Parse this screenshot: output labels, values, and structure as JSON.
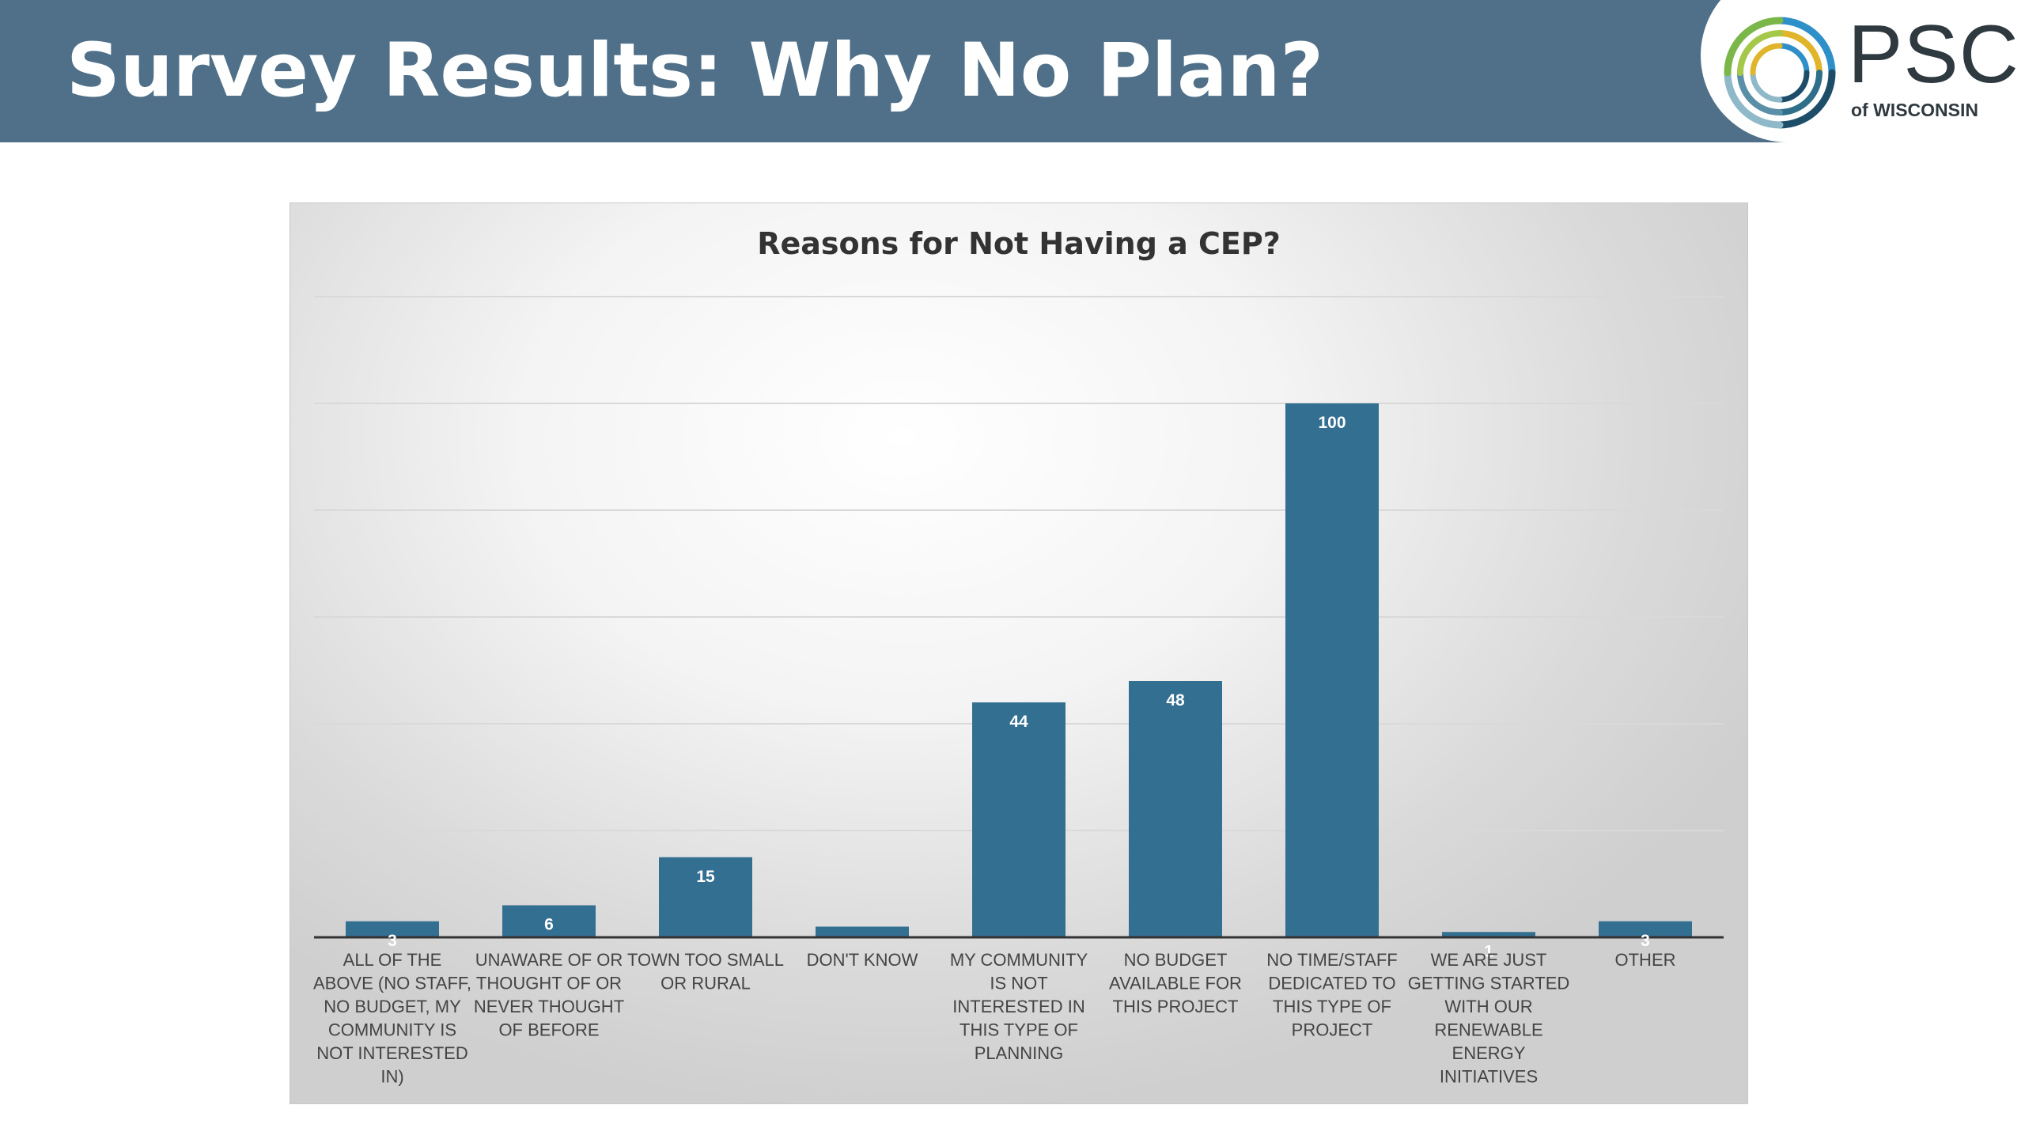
{
  "header": {
    "title": "Survey Results: Why No Plan?"
  },
  "logo": {
    "name": "PSC",
    "subtitle": "of WISCONSIN",
    "colors": [
      "#7ab648",
      "#e0b52b",
      "#2f8fc9",
      "#2f6f8a",
      "#1e4d69",
      "#8fb9c9"
    ]
  },
  "colors": {
    "header_bg": "#4f7088",
    "bar": "#336f91",
    "title_text": "#ffffff"
  },
  "chart_data": {
    "type": "bar",
    "title": "Reasons for Not Having a CEP?",
    "xlabel": "",
    "ylabel": "",
    "ylim": [
      0,
      120
    ],
    "grid": true,
    "legend": "none",
    "categories": [
      "ALL OF THE ABOVE (NO STAFF, NO BUDGET, MY COMMUNITY IS NOT INTERESTED IN)",
      "UNAWARE OF OR THOUGHT OF OR NEVER THOUGHT OF BEFORE",
      "TOWN TOO SMALL OR RURAL",
      "DON'T KNOW",
      "MY COMMUNITY IS NOT INTERESTED IN THIS TYPE OF PLANNING",
      "NO BUDGET AVAILABLE FOR THIS PROJECT",
      "NO TIME/STAFF DEDICATED TO THIS TYPE OF PROJECT",
      "WE ARE JUST GETTING STARTED WITH OUR RENEWABLE ENERGY INITIATIVES",
      "OTHER"
    ],
    "category_label_lines": [
      [
        "ALL OF THE",
        "ABOVE (NO STAFF,",
        "NO BUDGET, MY",
        "COMMUNITY IS",
        "NOT INTERESTED",
        "IN)"
      ],
      [
        "UNAWARE OF OR",
        "THOUGHT OF OR",
        "NEVER THOUGHT",
        "OF BEFORE"
      ],
      [
        "TOWN TOO SMALL",
        "OR RURAL"
      ],
      [
        "DON'T KNOW"
      ],
      [
        "MY COMMUNITY",
        "IS NOT",
        "INTERESTED IN",
        "THIS TYPE OF",
        "PLANNING"
      ],
      [
        "NO BUDGET",
        "AVAILABLE FOR",
        "THIS PROJECT"
      ],
      [
        "NO TIME/STAFF",
        "DEDICATED TO",
        "THIS TYPE OF",
        "PROJECT"
      ],
      [
        "WE ARE JUST",
        "GETTING STARTED",
        "WITH OUR",
        "RENEWABLE",
        "ENERGY",
        "INITIATIVES"
      ],
      [
        "OTHER"
      ]
    ],
    "values": [
      3,
      6,
      15,
      2,
      44,
      48,
      100,
      1,
      3
    ],
    "data_labels": [
      "3",
      "6",
      "15",
      "",
      "44",
      "48",
      "100",
      "1",
      "3"
    ],
    "bar_color": "#336f91"
  }
}
